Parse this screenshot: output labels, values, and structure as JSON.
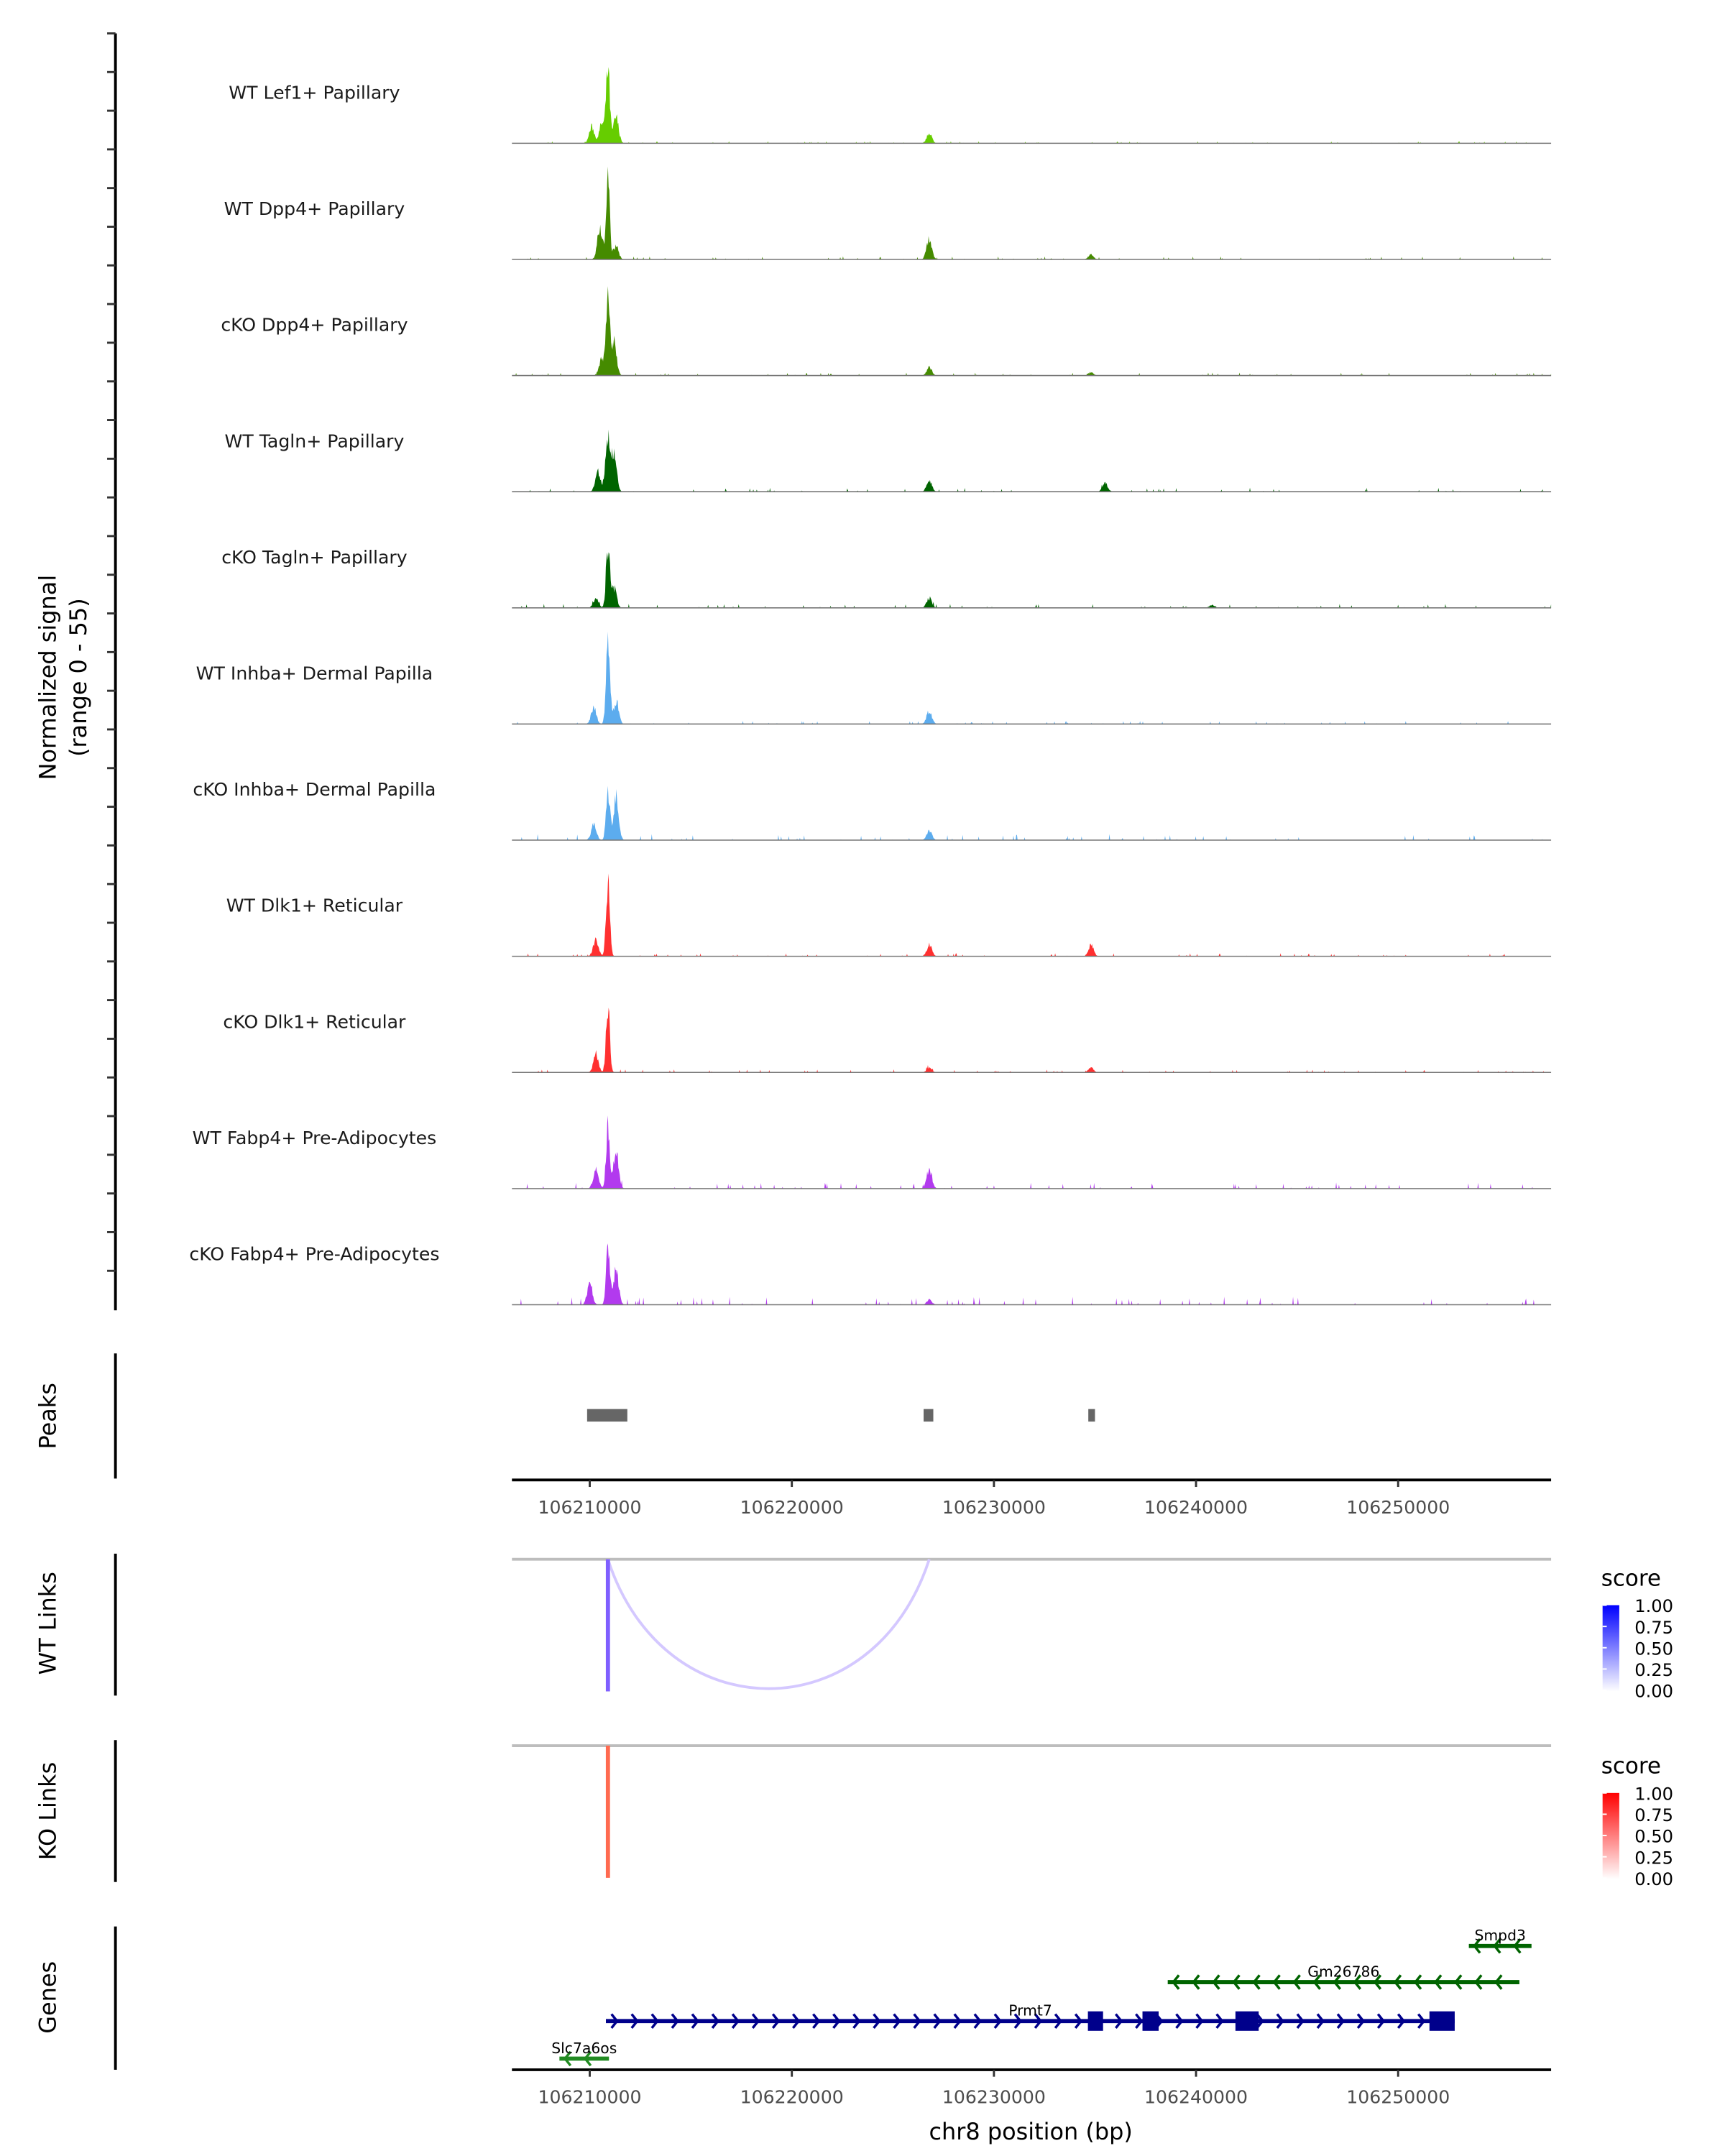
{
  "chart_data": {
    "type": "area",
    "title": "",
    "ylabel": [
      "Normalized signal",
      "(range 0 - 55)"
    ],
    "ylim": [
      0,
      55
    ],
    "xlabel": "chr8 position (bp)",
    "xlim": [
      106206150,
      106257570
    ],
    "xticks": [
      106210000,
      106220000,
      106230000,
      106240000,
      106250000
    ],
    "xtick_labels": [
      "106210000",
      "106220000",
      "106230000",
      "106240000",
      "106250000"
    ],
    "tracks": [
      {
        "name": "WT Lef1+ Papillary",
        "color": "#66CD00",
        "peaks": [
          [
            106210900,
            45
          ],
          [
            106211300,
            16
          ],
          [
            106210100,
            10
          ],
          [
            106210600,
            12
          ],
          [
            106226800,
            6
          ]
        ],
        "noise": 1
      },
      {
        "name": "WT Dpp4+ Papillary",
        "color": "#458B00",
        "peaks": [
          [
            106210900,
            47
          ],
          [
            106210500,
            19
          ],
          [
            106211300,
            8
          ],
          [
            106226800,
            13
          ],
          [
            106234800,
            3
          ]
        ],
        "noise": 1.5
      },
      {
        "name": "cKO Dpp4+ Papillary",
        "color": "#458B00",
        "peaks": [
          [
            106210900,
            43
          ],
          [
            106211200,
            22
          ],
          [
            106210600,
            10
          ],
          [
            106226800,
            5
          ],
          [
            106234800,
            2
          ]
        ],
        "noise": 1.5
      },
      {
        "name": "WT Tagln+ Papillary",
        "color": "#006400",
        "peaks": [
          [
            106210900,
            30
          ],
          [
            106211200,
            22
          ],
          [
            106210400,
            12
          ],
          [
            106226800,
            7
          ],
          [
            106235500,
            6
          ]
        ],
        "noise": 2
      },
      {
        "name": "cKO Tagln+ Papillary",
        "color": "#006400",
        "peaks": [
          [
            106210900,
            38
          ],
          [
            106211200,
            12
          ],
          [
            106210300,
            6
          ],
          [
            106226800,
            6
          ],
          [
            106240800,
            2
          ]
        ],
        "noise": 2
      },
      {
        "name": "WT Inhba+ Dermal Papilla",
        "color": "#5CACEE",
        "peaks": [
          [
            106210900,
            50
          ],
          [
            106210200,
            10
          ],
          [
            106211300,
            14
          ],
          [
            106226800,
            8
          ]
        ],
        "noise": 1.5
      },
      {
        "name": "cKO Inhba+ Dermal Papilla",
        "color": "#5CACEE",
        "peaks": [
          [
            106210900,
            32
          ],
          [
            106211300,
            26
          ],
          [
            106210200,
            10
          ],
          [
            106226800,
            6
          ]
        ],
        "noise": 3
      },
      {
        "name": "WT Dlk1+ Reticular",
        "color": "#FF3030",
        "peaks": [
          [
            106210900,
            44
          ],
          [
            106210300,
            10
          ],
          [
            106234800,
            7
          ],
          [
            106226800,
            7
          ]
        ],
        "noise": 1.5
      },
      {
        "name": "cKO Dlk1+ Reticular",
        "color": "#FF3030",
        "peaks": [
          [
            106210900,
            42
          ],
          [
            106210300,
            10
          ],
          [
            106226800,
            3
          ],
          [
            106234800,
            3
          ]
        ],
        "noise": 1.5
      },
      {
        "name": "WT Fabp4+ Pre-Adipocytes",
        "color": "#B23AEE",
        "peaks": [
          [
            106210900,
            36
          ],
          [
            106211300,
            22
          ],
          [
            106226800,
            12
          ],
          [
            106210300,
            12
          ]
        ],
        "noise": 3
      },
      {
        "name": "cKO Fabp4+ Pre-Adipocytes",
        "color": "#B23AEE",
        "peaks": [
          [
            106210900,
            36
          ],
          [
            106210000,
            14
          ],
          [
            106211300,
            22
          ],
          [
            106226800,
            3
          ]
        ],
        "noise": 4
      }
    ],
    "peaks_track": {
      "label": "Peaks",
      "color": "#666666",
      "regions": [
        [
          106209870,
          106211860
        ],
        [
          106226520,
          106227000
        ],
        [
          106234670,
          106235000
        ]
      ]
    },
    "wt_links": {
      "label": "WT Links",
      "color": "#7F5FFF",
      "arc_color": "#D4C8FF",
      "links": [
        {
          "start": 106210900,
          "end": 106226800,
          "score": 0.2
        },
        {
          "start": 106210900,
          "end": 106210960,
          "score": 0.75
        }
      ]
    },
    "ko_links": {
      "label": "KO Links",
      "color": "#FF6A50",
      "links": [
        {
          "start": 106210900,
          "end": 106210960,
          "score": 0.7
        }
      ]
    },
    "legends": [
      {
        "title": "score",
        "low": "#FFFFFF",
        "high": "#0000FF",
        "ticks": [
          "1.00",
          "0.75",
          "0.50",
          "0.25",
          "0.00"
        ]
      },
      {
        "title": "score",
        "low": "#FFFFFF",
        "high": "#FF0000",
        "ticks": [
          "1.00",
          "0.75",
          "0.50",
          "0.25",
          "0.00"
        ]
      }
    ],
    "genes_track": {
      "label": "Genes",
      "genes": [
        {
          "name": "Smpd3",
          "strand": "-",
          "start": 106253500,
          "end": 106256600,
          "color": "#006400",
          "row": 0,
          "exons": []
        },
        {
          "name": "Gm26786",
          "strand": "-",
          "start": 106238600,
          "end": 106256000,
          "color": "#006400",
          "row": 1,
          "exons": []
        },
        {
          "name": "Prmt7",
          "strand": "+",
          "start": 106210800,
          "end": 106252800,
          "color": "#00008B",
          "row": 2,
          "exons": [
            [
              106234650,
              106235400
            ],
            [
              106237350,
              106238150
            ],
            [
              106241950,
              106243100
            ],
            [
              106251550,
              106252800
            ]
          ]
        },
        {
          "name": "Slc7a6os",
          "strand": "-",
          "start": 106208500,
          "end": 106210950,
          "color": "#228B22",
          "row": 3,
          "exons": []
        }
      ]
    }
  }
}
